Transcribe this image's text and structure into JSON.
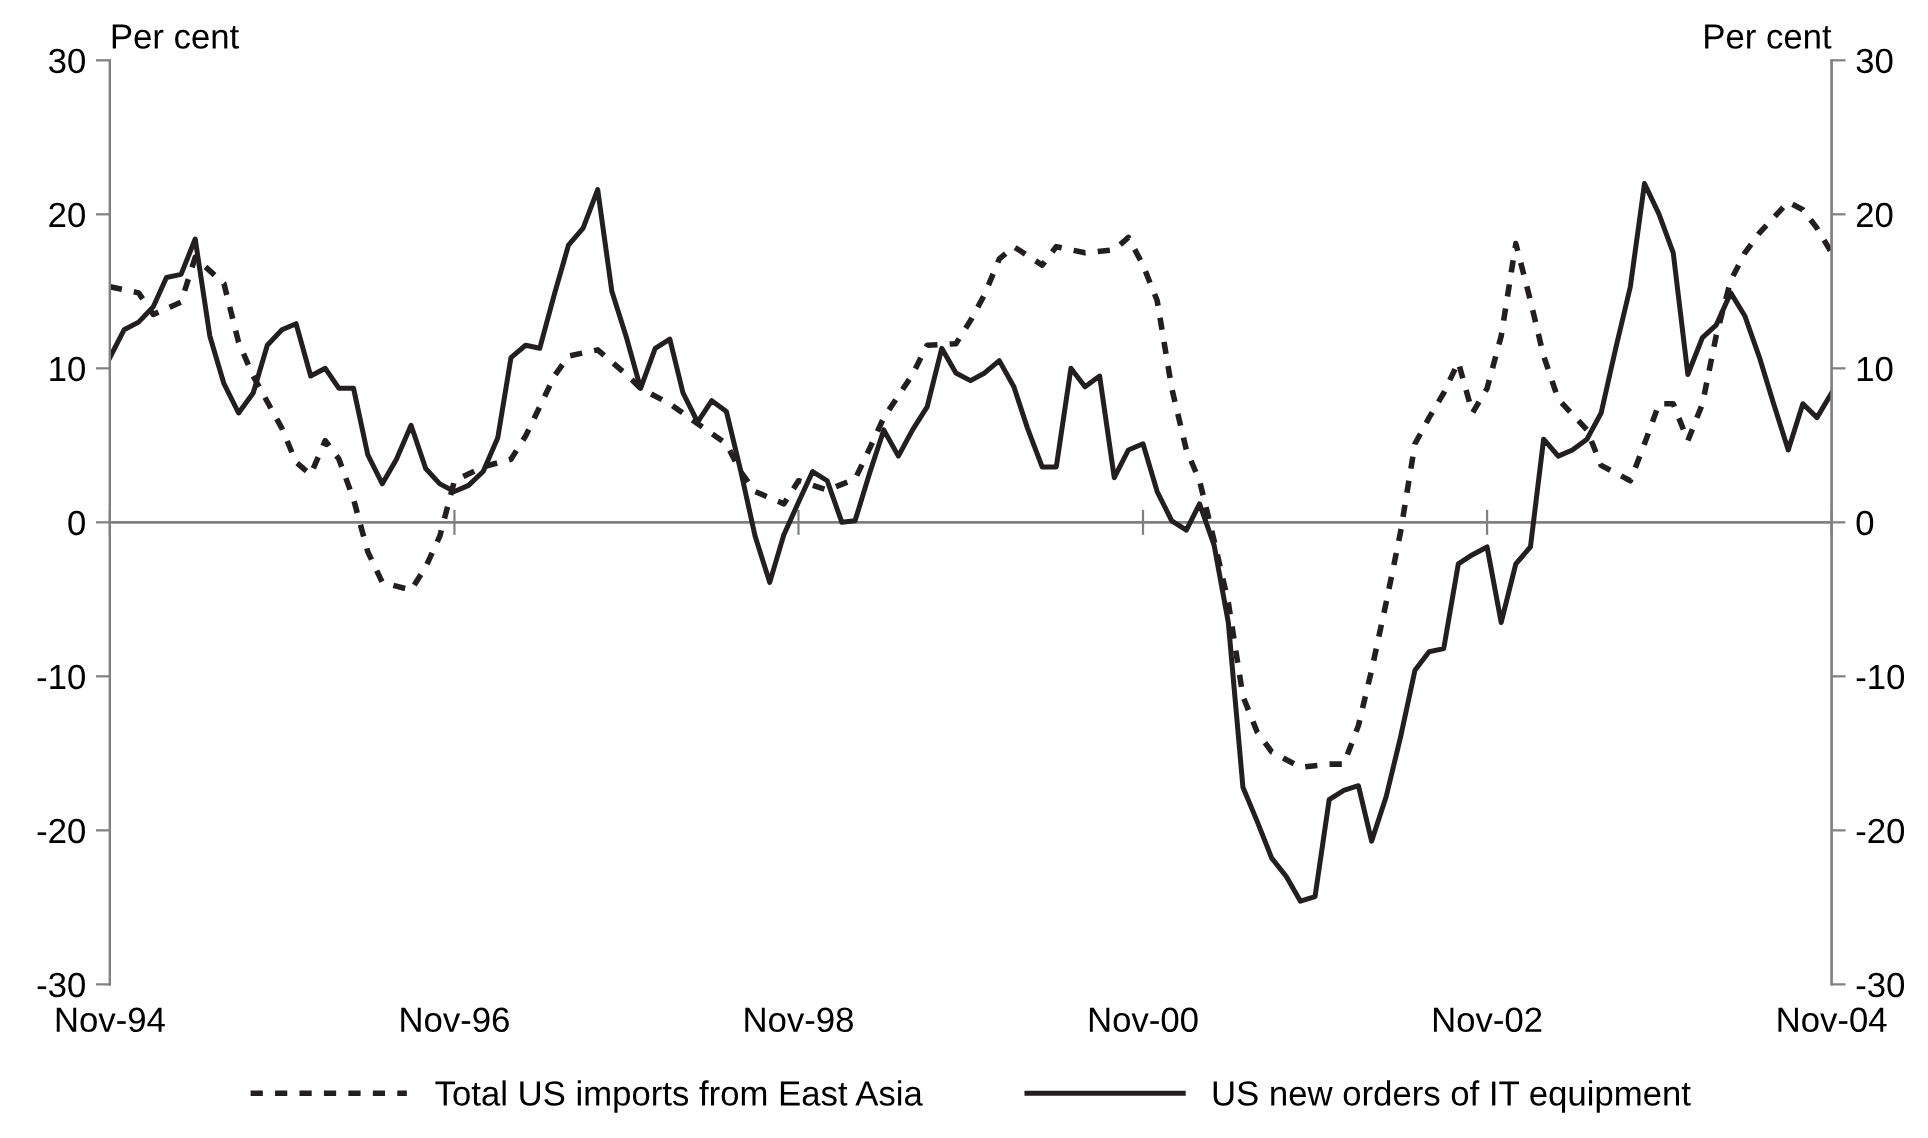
{
  "chart_data": {
    "type": "line",
    "ylabel": "Per cent",
    "y2label": "Per cent",
    "x": [
      "1994-11",
      "1994-12",
      "1995-01",
      "1995-02",
      "1995-03",
      "1995-04",
      "1995-05",
      "1995-06",
      "1995-07",
      "1995-08",
      "1995-09",
      "1995-10",
      "1995-11",
      "1995-12",
      "1996-01",
      "1996-02",
      "1996-03",
      "1996-04",
      "1996-05",
      "1996-06",
      "1996-07",
      "1996-08",
      "1996-09",
      "1996-10",
      "1996-11",
      "1996-12",
      "1997-01",
      "1997-02",
      "1997-03",
      "1997-04",
      "1997-05",
      "1997-06",
      "1997-07",
      "1997-08",
      "1997-09",
      "1997-10",
      "1997-11",
      "1997-12",
      "1998-01",
      "1998-02",
      "1998-03",
      "1998-04",
      "1998-05",
      "1998-06",
      "1998-07",
      "1998-08",
      "1998-09",
      "1998-10",
      "1998-11",
      "1998-12",
      "1999-01",
      "1999-02",
      "1999-03",
      "1999-04",
      "1999-05",
      "1999-06",
      "1999-07",
      "1999-08",
      "1999-09",
      "1999-10",
      "1999-11",
      "1999-12",
      "2000-01",
      "2000-02",
      "2000-03",
      "2000-04",
      "2000-05",
      "2000-06",
      "2000-07",
      "2000-08",
      "2000-09",
      "2000-10",
      "2000-11",
      "2000-12",
      "2001-01",
      "2001-02",
      "2001-03",
      "2001-04",
      "2001-05",
      "2001-06",
      "2001-07",
      "2001-08",
      "2001-09",
      "2001-10",
      "2001-11",
      "2001-12",
      "2002-01",
      "2002-02",
      "2002-03",
      "2002-04",
      "2002-05",
      "2002-06",
      "2002-07",
      "2002-08",
      "2002-09",
      "2002-10",
      "2002-11",
      "2002-12",
      "2003-01",
      "2003-02",
      "2003-03",
      "2003-04",
      "2003-05",
      "2003-06",
      "2003-07",
      "2003-08",
      "2003-09",
      "2003-10",
      "2003-11",
      "2003-12",
      "2004-01",
      "2004-02",
      "2004-03",
      "2004-04",
      "2004-05",
      "2004-06",
      "2004-07",
      "2004-08",
      "2004-09",
      "2004-10",
      "2004-11"
    ],
    "series": [
      {
        "name": "Total US imports from East Asia",
        "color": "#231f20",
        "line_style": "dotted",
        "x": [
          "1994-11",
          "1995-01",
          "1995-02",
          "1995-04",
          "1995-05",
          "1995-07",
          "1995-08",
          "1995-09",
          "1995-11",
          "1995-12",
          "1996-01",
          "1996-02",
          "1996-03",
          "1996-04",
          "1996-05",
          "1996-06",
          "1996-08",
          "1996-09",
          "1996-10",
          "1996-11",
          "1997-01",
          "1997-03",
          "1997-04",
          "1997-05",
          "1997-06",
          "1997-07",
          "1997-09",
          "1997-11",
          "1997-12",
          "1998-02",
          "1998-04",
          "1998-06",
          "1998-07",
          "1998-08",
          "1998-10",
          "1998-11",
          "1999-01",
          "1999-03",
          "1999-04",
          "1999-05",
          "1999-07",
          "1999-08",
          "1999-10",
          "1999-11",
          "1999-12",
          "2000-01",
          "2000-02",
          "2000-04",
          "2000-05",
          "2000-07",
          "2000-09",
          "2000-10",
          "2000-11",
          "2000-12",
          "2001-01",
          "2001-02",
          "2001-03",
          "2001-04",
          "2001-05",
          "2001-06",
          "2001-07",
          "2001-08",
          "2001-10",
          "2001-12",
          "2002-01",
          "2002-02",
          "2002-03",
          "2002-04",
          "2002-05",
          "2002-06",
          "2002-07",
          "2002-08",
          "2002-09",
          "2002-10",
          "2002-11",
          "2002-12",
          "2003-01",
          "2003-02",
          "2003-03",
          "2003-04",
          "2003-06",
          "2003-07",
          "2003-09",
          "2003-10",
          "2003-11",
          "2003-12",
          "2004-01",
          "2004-02",
          "2004-03",
          "2004-04",
          "2004-05",
          "2004-06",
          "2004-08",
          "2004-09",
          "2004-10",
          "2004-11"
        ],
        "values": [
          15.3,
          14.9,
          13.5,
          14.3,
          17.2,
          15.5,
          11.7,
          9.5,
          6.1,
          3.9,
          3.1,
          5.3,
          4.1,
          1.5,
          -1.9,
          -3.9,
          -4.4,
          -2.9,
          -0.9,
          2.7,
          3.6,
          4.1,
          5.6,
          7.5,
          9.5,
          10.8,
          11.2,
          9.6,
          8.7,
          7.7,
          6.4,
          5.1,
          3.3,
          2,
          1.2,
          2.7,
          2.1,
          2.8,
          4.8,
          6.8,
          9.6,
          11.5,
          11.6,
          13.1,
          14.8,
          17.1,
          17.9,
          16.7,
          17.9,
          17.5,
          17.7,
          18.5,
          16.7,
          14.4,
          8.7,
          4.7,
          2.7,
          -1.2,
          -5.2,
          -11.3,
          -13.6,
          -14.9,
          -15.9,
          -15.7,
          -15.7,
          -13.2,
          -9.6,
          -5.2,
          -0.7,
          5.1,
          6.8,
          8.4,
          10.4,
          7.1,
          8.7,
          12.1,
          18.1,
          14.4,
          10.8,
          8,
          6,
          3.7,
          2.7,
          5.1,
          7.7,
          7.7,
          5.3,
          7.7,
          12.1,
          15.7,
          17.5,
          18.8,
          20.8,
          20.3,
          19.1,
          17.5
        ]
      },
      {
        "name": "US new orders of IT equipment",
        "color": "#231f20",
        "line_style": "solid",
        "values": [
          10.7,
          12.5,
          13,
          14,
          15.9,
          16.1,
          18.4,
          12.1,
          9,
          7.1,
          8.4,
          11.5,
          12.5,
          12.9,
          9.5,
          10,
          8.7,
          8.7,
          4.4,
          2.5,
          4.1,
          6.3,
          3.5,
          2.5,
          2,
          2.4,
          3.3,
          5.5,
          10.7,
          11.5,
          11.3,
          14.8,
          18,
          19.1,
          21.6,
          15,
          12,
          8.7,
          11.3,
          11.9,
          8.4,
          6.5,
          7.9,
          7.2,
          3.4,
          -0.9,
          -3.9,
          -0.8,
          1.3,
          3.3,
          2.7,
          0,
          0.1,
          3.2,
          6,
          4.3,
          6,
          7.5,
          11.3,
          9.7,
          9.2,
          9.7,
          10.5,
          8.8,
          6.1,
          3.6,
          3.6,
          10,
          8.8,
          9.5,
          2.9,
          4.7,
          5.1,
          2,
          0.1,
          -0.5,
          1.2,
          -1.5,
          -6.5,
          -17.2,
          -19.4,
          -21.8,
          -23,
          -24.6,
          -24.3,
          -18,
          -17.4,
          -17.1,
          -20.7,
          -17.8,
          -14,
          -9.6,
          -8.4,
          -8.2,
          -2.7,
          -2.1,
          -1.6,
          -6.5,
          -2.7,
          -1.6,
          5.4,
          4.3,
          4.7,
          5.4,
          7.1,
          11.3,
          15.3,
          22,
          20,
          17.5,
          9.6,
          12,
          12.8,
          14.9,
          13.4,
          10.7,
          7.7,
          4.7,
          7.7,
          6.8,
          8.4
        ]
      }
    ],
    "xlim": [
      "1994-11",
      "2004-11"
    ],
    "xticks": [
      {
        "value": "1994-11",
        "label": "Nov-94"
      },
      {
        "value": "1996-11",
        "label": "Nov-96"
      },
      {
        "value": "1998-11",
        "label": "Nov-98"
      },
      {
        "value": "2000-11",
        "label": "Nov-00"
      },
      {
        "value": "2002-11",
        "label": "Nov-02"
      },
      {
        "value": "2004-11",
        "label": "Nov-04"
      }
    ],
    "ylim": [
      -30,
      30
    ],
    "yticks": [
      -30,
      -20,
      -10,
      0,
      10,
      20,
      30
    ],
    "y2lim": [
      -30,
      30
    ],
    "y2ticks": [
      -30,
      -20,
      -10,
      0,
      10,
      20,
      30
    ],
    "ref_lines": [
      {
        "axis": "y",
        "value": 0,
        "color": "#808080"
      }
    ],
    "grid": false,
    "legend": "bottom"
  }
}
